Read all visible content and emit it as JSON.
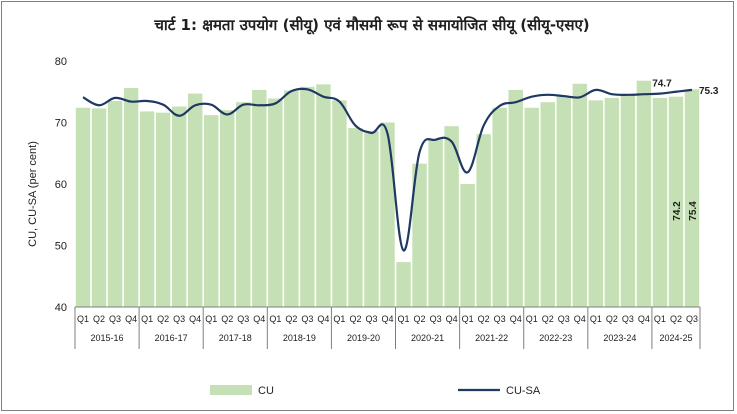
{
  "chart_data": {
    "type": "bar",
    "title": "चार्ट 1: क्षमता उपयोग (सीयू) एवं मौसमी रूप से समायोजित सीयू (सीयू-एसए)",
    "ylabel": "CU, CU-SA (per cent)",
    "ylim": [
      40,
      80
    ],
    "yticks": [
      40,
      50,
      60,
      70,
      80
    ],
    "quarters": [
      "Q1",
      "Q2",
      "Q3",
      "Q4",
      "Q1",
      "Q2",
      "Q3",
      "Q4",
      "Q1",
      "Q2",
      "Q3",
      "Q4",
      "Q1",
      "Q2",
      "Q3",
      "Q4",
      "Q1",
      "Q2",
      "Q3",
      "Q4",
      "Q1",
      "Q2",
      "Q3",
      "Q4",
      "Q1",
      "Q2",
      "Q3",
      "Q4",
      "Q1",
      "Q2",
      "Q3",
      "Q4",
      "Q1",
      "Q2",
      "Q3",
      "Q4",
      "Q1",
      "Q2",
      "Q3"
    ],
    "years": [
      "2015-16",
      "2016-17",
      "2017-18",
      "2018-19",
      "2019-20",
      "2020-21",
      "2021-22",
      "2022-23",
      "2023-24",
      "2024-25"
    ],
    "series": [
      {
        "name": "CU",
        "kind": "bar",
        "color": "#c5e0b4",
        "values": [
          72.4,
          72.3,
          73.5,
          75.6,
          71.8,
          71.6,
          72.6,
          74.7,
          71.2,
          72.0,
          73.3,
          75.3,
          73.9,
          75.2,
          75.8,
          76.2,
          73.6,
          69.1,
          68.6,
          70.0,
          47.3,
          63.3,
          67.3,
          69.4,
          60.0,
          68.1,
          72.4,
          75.3,
          72.4,
          73.3,
          74.3,
          76.3,
          73.6,
          74.0,
          74.6,
          76.8,
          74.0,
          74.2,
          75.4
        ]
      },
      {
        "name": "CU-SA",
        "kind": "line",
        "color": "#1f3864",
        "values": [
          74.1,
          72.8,
          74.0,
          73.4,
          73.5,
          72.9,
          71.1,
          72.8,
          72.9,
          71.3,
          72.9,
          72.8,
          73.1,
          75.1,
          75.4,
          74.2,
          73.4,
          69.5,
          68.3,
          68.2,
          49.2,
          65.2,
          67.2,
          66.9,
          61.9,
          69.5,
          72.7,
          73.3,
          74.2,
          74.5,
          74.3,
          74.1,
          75.3,
          74.6,
          74.5,
          74.6,
          74.7,
          75.0,
          75.3
        ]
      }
    ],
    "annotations": [
      {
        "text": "74.7",
        "series": "CU-SA",
        "index": 36
      },
      {
        "text": "75.3",
        "series": "CU-SA",
        "index": 38
      },
      {
        "text": "74.2",
        "series": "CU",
        "index": 37
      },
      {
        "text": "75.4",
        "series": "CU",
        "index": 38
      }
    ],
    "legend": [
      {
        "label": "CU",
        "kind": "bar",
        "color": "#c5e0b4"
      },
      {
        "label": "CU-SA",
        "kind": "line",
        "color": "#1f3864"
      }
    ],
    "legend_position": "bottom",
    "grid": false
  }
}
